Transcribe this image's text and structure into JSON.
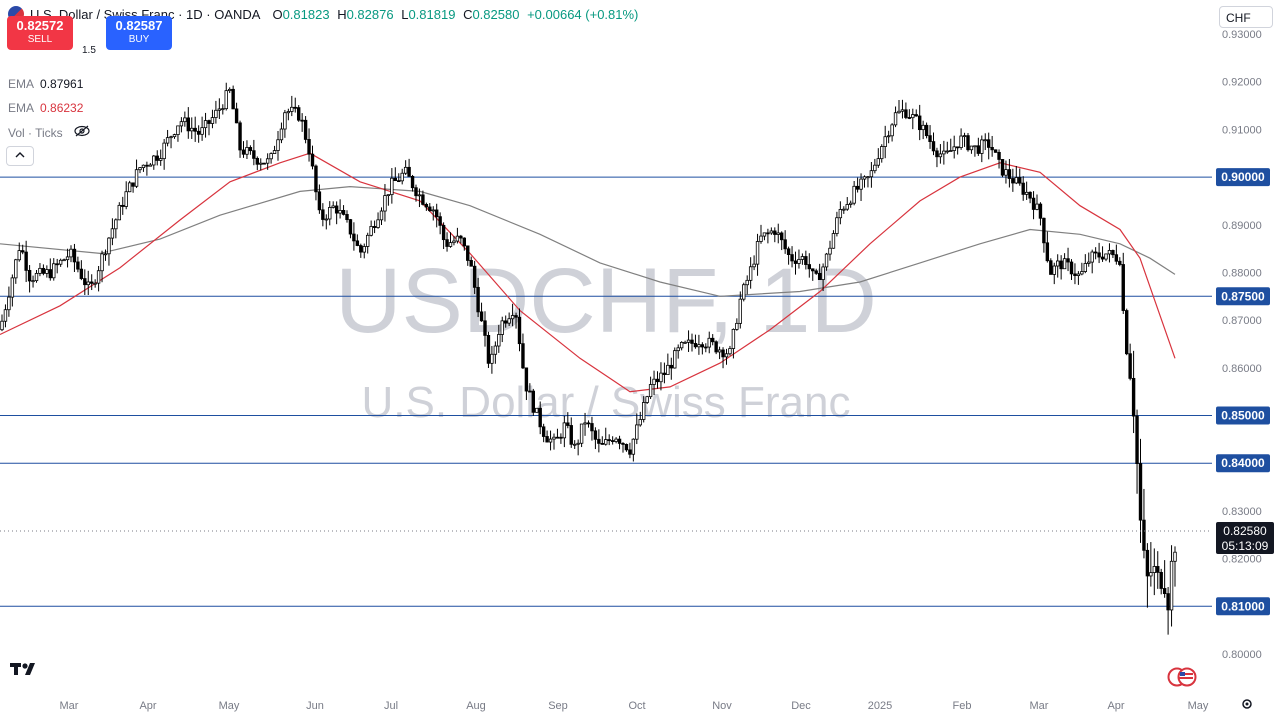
{
  "header": {
    "title": "U.S. Dollar / Swiss Franc · 1D · OANDA",
    "open_label": "O",
    "open": "0.81823",
    "high_label": "H",
    "high": "0.82876",
    "low_label": "L",
    "low": "0.81819",
    "close_label": "C",
    "close": "0.82580",
    "change": "+0.00664 (+0.81%)"
  },
  "trade": {
    "sell_price": "0.82572",
    "sell_label": "SELL",
    "spread": "1.5",
    "buy_price": "0.82587",
    "buy_label": "BUY"
  },
  "indicators": [
    {
      "name": "EMA",
      "value": "0.87961"
    },
    {
      "name": "EMA",
      "value": "0.86232"
    }
  ],
  "volume_label": "Vol · Ticks",
  "currency_selector": "CHF",
  "watermark": {
    "symbol": "USDCHF, 1D",
    "name": "U.S. Dollar / Swiss Franc"
  },
  "colors": {
    "up": "#089981",
    "down": "#f23645",
    "candle": "#000000",
    "ema_fast": "#d8343e",
    "ema_slow": "#808080",
    "hline": "#1e4fa0",
    "price_tag": "#131722"
  },
  "chart_data": {
    "type": "candlestick",
    "title": "U.S. Dollar / Swiss Franc · 1D · OANDA",
    "ylim": [
      0.795,
      0.935
    ],
    "y_ticks": [
      "0.93000",
      "0.92000",
      "0.91000",
      "0.89000",
      "0.88000",
      "0.87000",
      "0.86000",
      "0.83000",
      "0.82000",
      "0.80000"
    ],
    "x_ticks": [
      "Mar",
      "Apr",
      "May",
      "Jun",
      "Jul",
      "Aug",
      "Sep",
      "Oct",
      "Nov",
      "Dec",
      "2025",
      "Feb",
      "Mar",
      "Apr",
      "May"
    ],
    "horizontal_levels": [
      "0.90000",
      "0.87500",
      "0.85000",
      "0.84000",
      "0.81000"
    ],
    "last_price": "0.82580",
    "countdown": "05:13:09",
    "price_path": [
      [
        0,
        0.868
      ],
      [
        10,
        0.877
      ],
      [
        20,
        0.886
      ],
      [
        30,
        0.879
      ],
      [
        50,
        0.88
      ],
      [
        70,
        0.884
      ],
      [
        90,
        0.876
      ],
      [
        110,
        0.888
      ],
      [
        125,
        0.896
      ],
      [
        140,
        0.902
      ],
      [
        160,
        0.905
      ],
      [
        180,
        0.912
      ],
      [
        200,
        0.909
      ],
      [
        215,
        0.913
      ],
      [
        230,
        0.918
      ],
      [
        240,
        0.906
      ],
      [
        255,
        0.904
      ],
      [
        270,
        0.903
      ],
      [
        285,
        0.914
      ],
      [
        300,
        0.913
      ],
      [
        310,
        0.905
      ],
      [
        320,
        0.891
      ],
      [
        335,
        0.894
      ],
      [
        350,
        0.889
      ],
      [
        360,
        0.884
      ],
      [
        375,
        0.891
      ],
      [
        390,
        0.898
      ],
      [
        405,
        0.901
      ],
      [
        420,
        0.896
      ],
      [
        435,
        0.893
      ],
      [
        445,
        0.886
      ],
      [
        460,
        0.887
      ],
      [
        470,
        0.882
      ],
      [
        480,
        0.871
      ],
      [
        490,
        0.86
      ],
      [
        500,
        0.869
      ],
      [
        515,
        0.873
      ],
      [
        525,
        0.857
      ],
      [
        535,
        0.851
      ],
      [
        545,
        0.846
      ],
      [
        555,
        0.844
      ],
      [
        565,
        0.848
      ],
      [
        575,
        0.843
      ],
      [
        585,
        0.849
      ],
      [
        600,
        0.843
      ],
      [
        615,
        0.846
      ],
      [
        630,
        0.843
      ],
      [
        640,
        0.849
      ],
      [
        650,
        0.856
      ],
      [
        665,
        0.859
      ],
      [
        680,
        0.864
      ],
      [
        700,
        0.866
      ],
      [
        720,
        0.864
      ],
      [
        730,
        0.863
      ],
      [
        740,
        0.874
      ],
      [
        750,
        0.88
      ],
      [
        760,
        0.887
      ],
      [
        775,
        0.889
      ],
      [
        790,
        0.883
      ],
      [
        805,
        0.883
      ],
      [
        815,
        0.878
      ],
      [
        825,
        0.882
      ],
      [
        840,
        0.893
      ],
      [
        855,
        0.897
      ],
      [
        870,
        0.9
      ],
      [
        880,
        0.906
      ],
      [
        895,
        0.913
      ],
      [
        905,
        0.914
      ],
      [
        920,
        0.911
      ],
      [
        935,
        0.906
      ],
      [
        945,
        0.904
      ],
      [
        960,
        0.908
      ],
      [
        975,
        0.906
      ],
      [
        990,
        0.907
      ],
      [
        1000,
        0.902
      ],
      [
        1010,
        0.9
      ],
      [
        1020,
        0.898
      ],
      [
        1030,
        0.896
      ],
      [
        1040,
        0.892
      ],
      [
        1050,
        0.88
      ],
      [
        1060,
        0.882
      ],
      [
        1070,
        0.881
      ],
      [
        1080,
        0.879
      ],
      [
        1090,
        0.883
      ],
      [
        1105,
        0.884
      ],
      [
        1120,
        0.883
      ],
      [
        1125,
        0.866
      ],
      [
        1132,
        0.858
      ],
      [
        1137,
        0.84
      ],
      [
        1142,
        0.822
      ],
      [
        1147,
        0.815
      ],
      [
        1152,
        0.818
      ],
      [
        1158,
        0.815
      ],
      [
        1163,
        0.818
      ],
      [
        1168,
        0.812
      ],
      [
        1172,
        0.819
      ],
      [
        1176,
        0.8258
      ]
    ],
    "ema_fast": [
      [
        0,
        0.867
      ],
      [
        60,
        0.873
      ],
      [
        120,
        0.881
      ],
      [
        180,
        0.891
      ],
      [
        230,
        0.899
      ],
      [
        280,
        0.903
      ],
      [
        310,
        0.905
      ],
      [
        360,
        0.899
      ],
      [
        420,
        0.895
      ],
      [
        470,
        0.884
      ],
      [
        520,
        0.872
      ],
      [
        580,
        0.862
      ],
      [
        630,
        0.855
      ],
      [
        670,
        0.856
      ],
      [
        720,
        0.861
      ],
      [
        770,
        0.868
      ],
      [
        820,
        0.876
      ],
      [
        870,
        0.886
      ],
      [
        920,
        0.895
      ],
      [
        960,
        0.9
      ],
      [
        1000,
        0.903
      ],
      [
        1040,
        0.901
      ],
      [
        1080,
        0.894
      ],
      [
        1120,
        0.889
      ],
      [
        1140,
        0.883
      ],
      [
        1160,
        0.871
      ],
      [
        1175,
        0.862
      ]
    ],
    "ema_slow": [
      [
        0,
        0.886
      ],
      [
        100,
        0.884
      ],
      [
        160,
        0.887
      ],
      [
        220,
        0.892
      ],
      [
        300,
        0.897
      ],
      [
        350,
        0.898
      ],
      [
        420,
        0.897
      ],
      [
        470,
        0.894
      ],
      [
        540,
        0.888
      ],
      [
        600,
        0.882
      ],
      [
        660,
        0.878
      ],
      [
        720,
        0.875
      ],
      [
        800,
        0.876
      ],
      [
        860,
        0.878
      ],
      [
        920,
        0.882
      ],
      [
        980,
        0.886
      ],
      [
        1030,
        0.889
      ],
      [
        1080,
        0.888
      ],
      [
        1120,
        0.886
      ],
      [
        1150,
        0.883
      ],
      [
        1175,
        0.8796
      ]
    ]
  }
}
